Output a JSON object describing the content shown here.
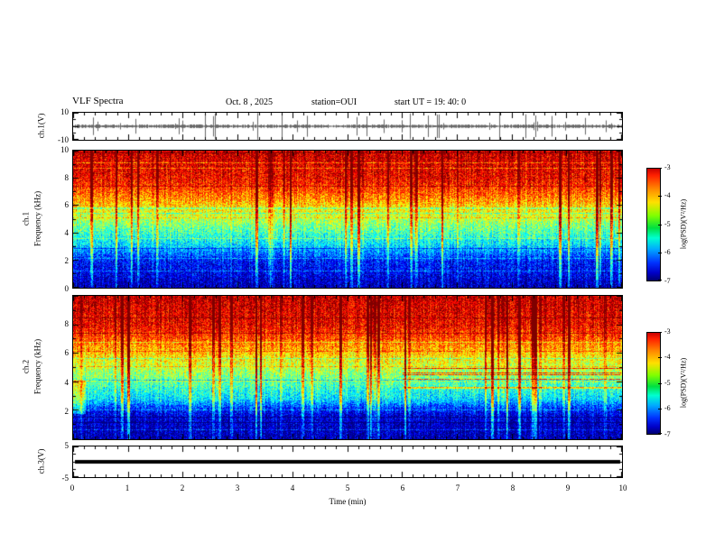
{
  "title": "VLF Spectra",
  "header": {
    "date": "Oct. 8  , 2025",
    "station": "station=OUI",
    "start_ut": "start UT  =    19: 40: 0"
  },
  "panels": {
    "ch1_wave": {
      "ylabel": "ch.1(V)",
      "ymax": "10",
      "ymin": "-10"
    },
    "ch1_spec": {
      "channel": "ch.1",
      "ylabel": "Frequency (kHz)",
      "yticks": [
        "10",
        "8",
        "6",
        "4",
        "2",
        "0"
      ]
    },
    "ch2_spec": {
      "channel": "ch.2",
      "ylabel": "Frequency (kHz)",
      "yticks": [
        "8",
        "6",
        "4",
        "2"
      ]
    },
    "ch3_wave": {
      "ylabel": "ch.3(V)",
      "ymax": "5",
      "ymin": "-5"
    }
  },
  "xaxis": {
    "label": "Time (min)",
    "ticks": [
      "0",
      "1",
      "2",
      "3",
      "4",
      "5",
      "6",
      "7",
      "8",
      "9",
      "10"
    ]
  },
  "colorbars": {
    "label": "log(PSD)(V²/Hz)",
    "ticks": [
      "-3",
      "-4",
      "-5",
      "-6",
      "-7"
    ]
  },
  "colors": {
    "foreground": "#000000",
    "background": "#ffffff",
    "colormap": "jet (red=-3 high PSD, dark blue=-7 low PSD)"
  },
  "chart_data": [
    {
      "type": "line",
      "title": "ch.1(V) time series",
      "xlabel": "Time (min)",
      "ylabel": "ch.1(V)",
      "xlim": [
        0,
        10
      ],
      "ylim": [
        -10,
        10
      ],
      "description": "Dense black noise band centered on 0 V, typical amplitude about ±1 V, with irregular impulsive spikes reaching roughly ±8 V throughout the 10-minute record."
    },
    {
      "type": "heatmap",
      "title": "ch.1 VLF spectrogram",
      "xlabel": "Time (min)",
      "ylabel": "Frequency (kHz)",
      "xlim": [
        0,
        10
      ],
      "ylim": [
        0,
        10
      ],
      "colorbar_label": "log(PSD)(V²/Hz)",
      "clim": [
        -7,
        -3
      ],
      "legend_position": "right",
      "description": "Jet-colormap spectrogram: PSD near -3 (red) above ~7 kHz, -4 to -5 (orange/yellow/green) between ~3 and 7 kHz, ~-6 (blue) from ~0.5 to 2.5 kHz with darker horizontal banding, darkest near 0 kHz; dense vertical impulsive striations (sferics) at all times."
    },
    {
      "type": "heatmap",
      "title": "ch.2 VLF spectrogram",
      "xlabel": "Time (min)",
      "ylabel": "Frequency (kHz)",
      "xlim": [
        0,
        10
      ],
      "ylim": [
        0,
        10
      ],
      "colorbar_label": "log(PSD)(V²/Hz)",
      "clim": [
        -7,
        -3
      ],
      "legend_position": "right",
      "description": "Similar jet-colormap spectrogram: red band above ~6-7 kHz, yellow/green 2.5-6 kHz, cyan band near 2-2.5 kHz, very dark blue below ~2 kHz; horizontal interference lines near 3.5-5 kHz in the right half of the record and dense vertical striations throughout."
    },
    {
      "type": "line",
      "title": "ch.3(V) time series",
      "xlabel": "Time (min)",
      "ylabel": "ch.3(V)",
      "xlim": [
        0,
        10
      ],
      "ylim": [
        -5,
        5
      ],
      "description": "Flat constant thick black line at 0 V for the entire record."
    }
  ]
}
